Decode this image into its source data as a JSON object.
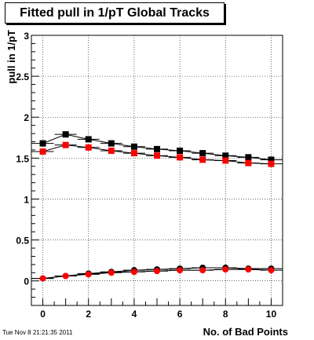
{
  "chart_data": {
    "type": "scatter",
    "title": "Fitted pull in 1/pT  Global Tracks",
    "xlabel": "No. of Bad Points",
    "ylabel": "pull in 1/pT",
    "xlim": [
      -0.5,
      10.5
    ],
    "ylim": [
      -0.3,
      3.0
    ],
    "x_ticks": [
      "0",
      "2",
      "4",
      "6",
      "8",
      "10"
    ],
    "y_ticks": [
      "0",
      "0.5",
      "1",
      "1.5",
      "2",
      "2.5",
      "3"
    ],
    "grid": true,
    "x": [
      0,
      1,
      2,
      3,
      4,
      5,
      6,
      7,
      8,
      9,
      10
    ],
    "series": [
      {
        "marker": "square",
        "color": "#000000",
        "values": [
          1.68,
          1.79,
          1.73,
          1.68,
          1.64,
          1.61,
          1.59,
          1.56,
          1.53,
          1.51,
          1.48
        ]
      },
      {
        "marker": "square",
        "color": "#ff0000",
        "values": [
          1.58,
          1.66,
          1.63,
          1.59,
          1.56,
          1.53,
          1.51,
          1.48,
          1.47,
          1.44,
          1.43
        ]
      },
      {
        "marker": "circle",
        "color": "#000000",
        "values": [
          0.03,
          0.06,
          0.09,
          0.11,
          0.13,
          0.14,
          0.15,
          0.16,
          0.16,
          0.15,
          0.15
        ]
      },
      {
        "marker": "circle",
        "color": "#ff0000",
        "values": [
          0.03,
          0.06,
          0.08,
          0.1,
          0.11,
          0.12,
          0.13,
          0.13,
          0.14,
          0.14,
          0.13
        ]
      }
    ]
  },
  "footer": {
    "timestamp": "Tue Nov  8 21:21:35 2011"
  }
}
